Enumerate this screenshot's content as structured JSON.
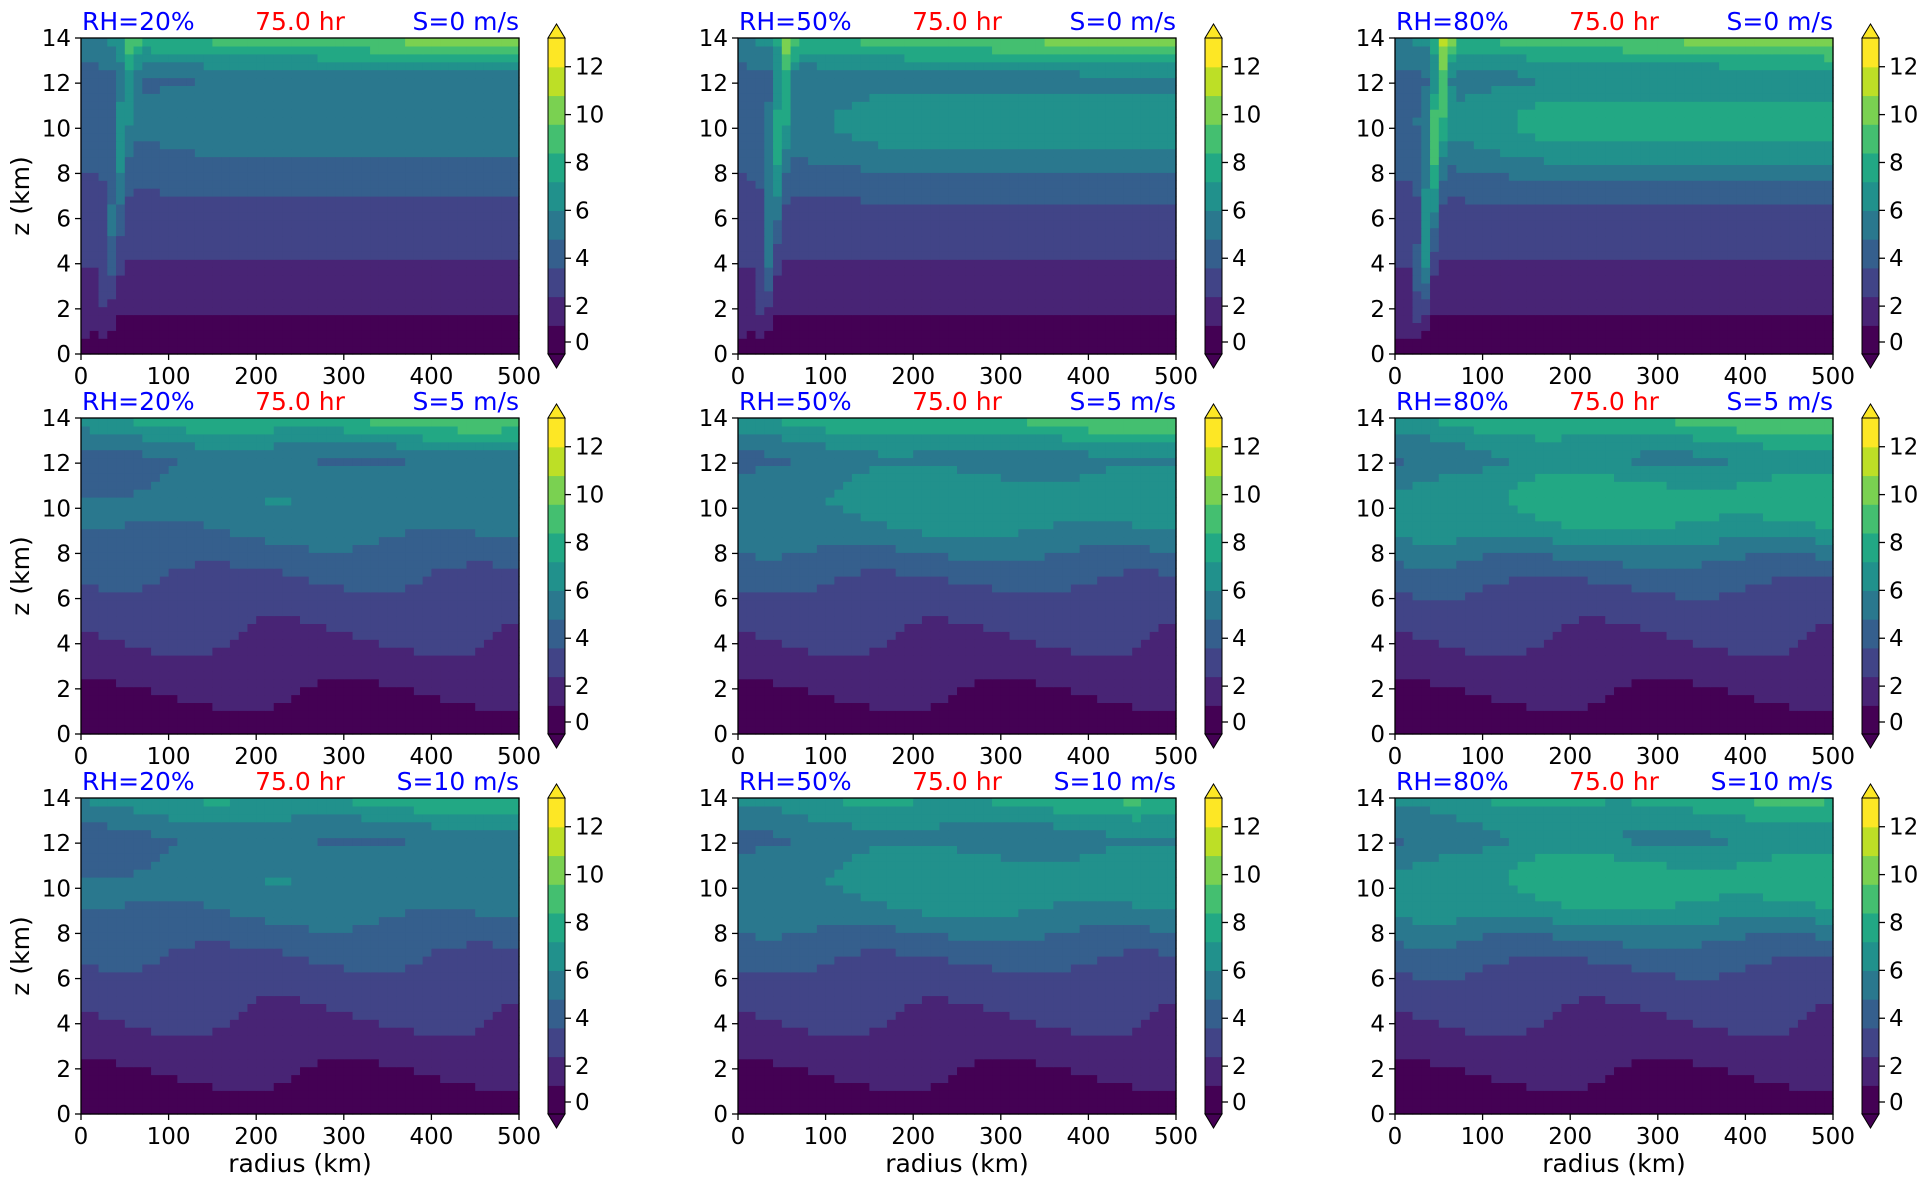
{
  "colors": {
    "left_title": "#0000ff",
    "center_title": "#ff0000",
    "colormap": [
      "#440154",
      "#482475",
      "#414487",
      "#355f8d",
      "#2a788e",
      "#21918c",
      "#22a884",
      "#44bf70",
      "#7ad151",
      "#bddf26",
      "#fde725"
    ]
  },
  "chart_data": {
    "type": "heatmap",
    "layout": "3x3",
    "x_ticks": [
      "0",
      "100",
      "200",
      "300",
      "400",
      "500"
    ],
    "y_ticks": [
      "0",
      "2",
      "4",
      "6",
      "8",
      "10",
      "12",
      "14"
    ],
    "colorbar_ticks": [
      "0",
      "2",
      "4",
      "6",
      "8",
      "10",
      "12"
    ],
    "xlim": [
      0,
      500
    ],
    "ylim": [
      0,
      14
    ],
    "clim": [
      0,
      13.2
    ],
    "xlabel": "radius (km)",
    "ylabel": "z (km)",
    "panels": [
      {
        "left": "RH=20%",
        "center": "75.0 hr",
        "right": "S=0 m/s",
        "shear": 0,
        "rh": 20
      },
      {
        "left": "RH=50%",
        "center": "75.0 hr",
        "right": "S=0 m/s",
        "shear": 0,
        "rh": 50
      },
      {
        "left": "RH=80%",
        "center": "75.0 hr",
        "right": "S=0 m/s",
        "shear": 0,
        "rh": 80
      },
      {
        "left": "RH=20%",
        "center": "75.0 hr",
        "right": "S=5 m/s",
        "shear": 5,
        "rh": 20
      },
      {
        "left": "RH=50%",
        "center": "75.0 hr",
        "right": "S=5 m/s",
        "shear": 5,
        "rh": 50
      },
      {
        "left": "RH=80%",
        "center": "75.0 hr",
        "right": "S=5 m/s",
        "shear": 5,
        "rh": 80
      },
      {
        "left": "RH=20%",
        "center": "75.0 hr",
        "right": "S=10 m/s",
        "shear": 10,
        "rh": 20
      },
      {
        "left": "RH=50%",
        "center": "75.0 hr",
        "right": "S=10 m/s",
        "shear": 10,
        "rh": 50
      },
      {
        "left": "RH=80%",
        "center": "75.0 hr",
        "right": "S=10 m/s",
        "shear": 10,
        "rh": 80
      }
    ]
  }
}
